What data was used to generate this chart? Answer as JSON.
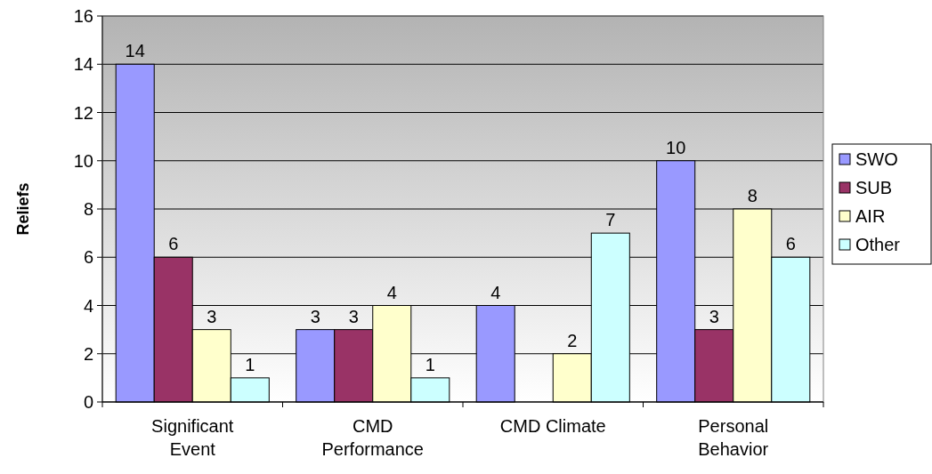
{
  "chart_data": {
    "type": "bar",
    "ylabel": "Reliefs",
    "categories": [
      "Significant Event",
      "CMD Performance",
      "CMD Climate",
      "Personal Behavior"
    ],
    "series": [
      {
        "name": "SWO",
        "color": "#9999ff",
        "values": [
          14,
          3,
          4,
          10
        ]
      },
      {
        "name": "SUB",
        "color": "#993366",
        "values": [
          6,
          3,
          null,
          3
        ]
      },
      {
        "name": "AIR",
        "color": "#ffffcc",
        "values": [
          3,
          4,
          2,
          8
        ]
      },
      {
        "name": "Other",
        "color": "#ccffff",
        "values": [
          1,
          1,
          7,
          6
        ]
      }
    ],
    "ylim": [
      0,
      16
    ],
    "yticks": [
      0,
      2,
      4,
      6,
      8,
      10,
      12,
      14,
      16
    ],
    "grid": "y",
    "legend": "right",
    "data_labels": true
  }
}
